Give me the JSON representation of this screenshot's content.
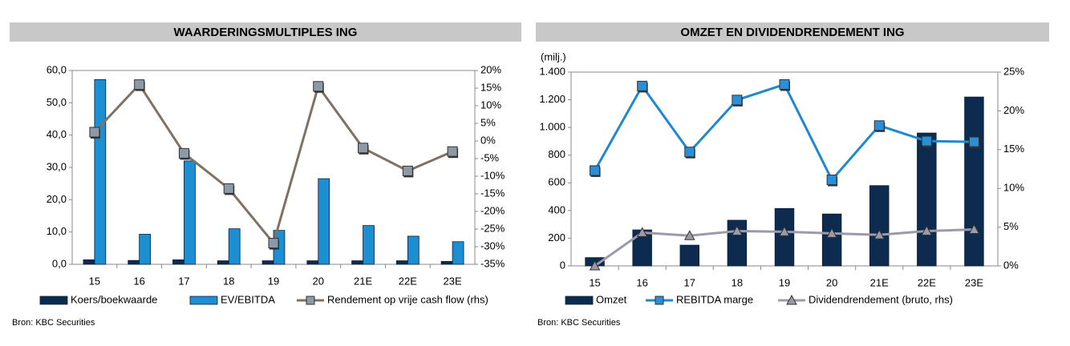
{
  "chart_data": [
    {
      "type": "bar",
      "title": "WAARDERINGSMULTIPLES ING",
      "source": "Bron: KBC Securities",
      "categories": [
        "15",
        "16",
        "17",
        "18",
        "19",
        "20",
        "21E",
        "22E",
        "23E"
      ],
      "series": [
        {
          "name": "Koers/boekwaarde",
          "color": "#0d2b4e",
          "values": [
            1.4,
            1.2,
            1.4,
            1.1,
            1.1,
            1.1,
            1.1,
            1.1,
            0.9
          ]
        },
        {
          "name": "EV/EBITDA",
          "color": "#1b8fd2",
          "values": [
            57.2,
            9.3,
            32,
            11,
            10.5,
            26.5,
            12,
            8.7,
            7
          ]
        },
        {
          "name": "Rendement op vrije cash flow (rhs)",
          "type": "line",
          "marker": "square",
          "color": "#7f7265",
          "marker_color": "#8c9aa8",
          "axis": "y2",
          "values": [
            2.5,
            16,
            -3.5,
            -13.5,
            -29,
            15.5,
            -2,
            -8.5,
            -3
          ]
        }
      ],
      "ylim": [
        0,
        60
      ],
      "yticks": [
        {
          "value": 0,
          "label": "0,0"
        },
        {
          "value": 10,
          "label": "10,0"
        },
        {
          "value": 20,
          "label": "20,0"
        },
        {
          "value": 30,
          "label": "30,0"
        },
        {
          "value": 40,
          "label": "40,0"
        },
        {
          "value": 50,
          "label": "50,0"
        },
        {
          "value": 60,
          "label": "60,0"
        }
      ],
      "y2lim": [
        -35,
        20
      ],
      "y2ticks": [
        {
          "value": -35,
          "label": "-35%"
        },
        {
          "value": -30,
          "label": "-30%"
        },
        {
          "value": -25,
          "label": "-25%"
        },
        {
          "value": -20,
          "label": "-20%"
        },
        {
          "value": -15,
          "label": "-15%"
        },
        {
          "value": -10,
          "label": "-10%"
        },
        {
          "value": -5,
          "label": "-5%"
        },
        {
          "value": 0,
          "label": "0%"
        },
        {
          "value": 5,
          "label": "5%"
        },
        {
          "value": 10,
          "label": "10%"
        },
        {
          "value": 15,
          "label": "15%"
        },
        {
          "value": 20,
          "label": "20%"
        }
      ]
    },
    {
      "type": "bar",
      "title": "OMZET EN DIVIDENDRENDEMENT ING",
      "source": "Bron: KBC Securities",
      "ylabel": "(milj.)",
      "categories": [
        "15",
        "16",
        "17",
        "18",
        "19",
        "20",
        "21E",
        "22E",
        "23E"
      ],
      "series": [
        {
          "name": "Omzet",
          "color": "#0d2b4e",
          "values": [
            60,
            260,
            150,
            330,
            415,
            375,
            580,
            960,
            1220
          ]
        },
        {
          "name": "REBITDA marge",
          "type": "line",
          "marker": "square",
          "color": "#1e88d0",
          "marker_color": "#2a8fd6",
          "axis": "y2",
          "values": [
            12.3,
            23.2,
            14.7,
            21.4,
            23.4,
            11.1,
            18.1,
            16.1,
            16.0
          ]
        },
        {
          "name": "Dividendrendement (bruto, rhs)",
          "type": "line",
          "marker": "triangle",
          "color": "#9a9aa8",
          "marker_color": "#9a9aa8",
          "axis": "y2",
          "values": [
            0,
            4.3,
            3.9,
            4.5,
            4.4,
            4.2,
            4.0,
            4.5,
            4.7
          ]
        }
      ],
      "ylim": [
        0,
        1400
      ],
      "yticks": [
        0,
        200,
        400,
        600,
        800,
        {
          "value": 1000,
          "label": "1.000"
        },
        {
          "value": 1200,
          "label": "1.200"
        },
        {
          "value": 1400,
          "label": "1.400"
        }
      ],
      "y2lim": [
        0,
        25
      ],
      "y2ticks": [
        {
          "value": 0,
          "label": "0%"
        },
        {
          "value": 5,
          "label": "5%"
        },
        {
          "value": 10,
          "label": "10%"
        },
        {
          "value": 15,
          "label": "15%"
        },
        {
          "value": 20,
          "label": "20%"
        },
        {
          "value": 25,
          "label": "25%"
        }
      ]
    }
  ]
}
